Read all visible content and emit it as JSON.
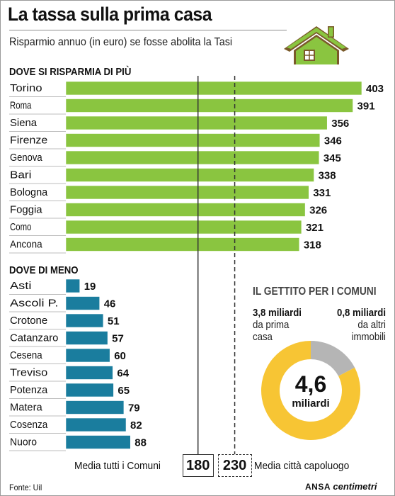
{
  "title": "La tassa sulla prima casa",
  "subtitle": "Risparmio annuo (in euro) se fosse abolita la Tasi",
  "colors": {
    "top_bar": "#8ac540",
    "bottom_bar": "#1a7d9e",
    "donut_major": "#f7c534",
    "donut_minor": "#b5b5b5"
  },
  "icon": "house-icon",
  "chart_data": [
    {
      "type": "bar",
      "orientation": "horizontal",
      "title": "DOVE SI RISPARMIA DI PIÙ",
      "categories": [
        "Torino",
        "Roma",
        "Siena",
        "Firenze",
        "Genova",
        "Bari",
        "Bologna",
        "Foggia",
        "Como",
        "Ancona"
      ],
      "values": [
        403,
        391,
        356,
        346,
        345,
        338,
        331,
        326,
        321,
        318
      ],
      "xlim": [
        0,
        403
      ]
    },
    {
      "type": "bar",
      "orientation": "horizontal",
      "title": "DOVE DI MENO",
      "categories": [
        "Asti",
        "Ascoli P.",
        "Crotone",
        "Catanzaro",
        "Cesena",
        "Treviso",
        "Potenza",
        "Matera",
        "Cosenza",
        "Nuoro"
      ],
      "values": [
        19,
        46,
        51,
        57,
        60,
        64,
        65,
        79,
        82,
        88
      ],
      "xlim": [
        0,
        403
      ]
    },
    {
      "type": "pie",
      "title": "IL GETTITO PER I COMUNI",
      "center_value": "4,6",
      "center_unit": "miliardi",
      "slices": [
        {
          "value_text": "3,8 miliardi",
          "desc": "da prima casa",
          "value": 3.8
        },
        {
          "value_text": "0,8 miliardi",
          "desc": "da altri immobili",
          "value": 0.8
        }
      ]
    }
  ],
  "reference_lines": [
    {
      "value": 180,
      "label": "Media tutti i Comuni",
      "style": "solid"
    },
    {
      "value": 230,
      "label": "Media città capoluogo",
      "style": "dashed"
    }
  ],
  "source": "Fonte: Uil",
  "logo_ansa": "ANSA",
  "logo_centimetri": "centimetri"
}
